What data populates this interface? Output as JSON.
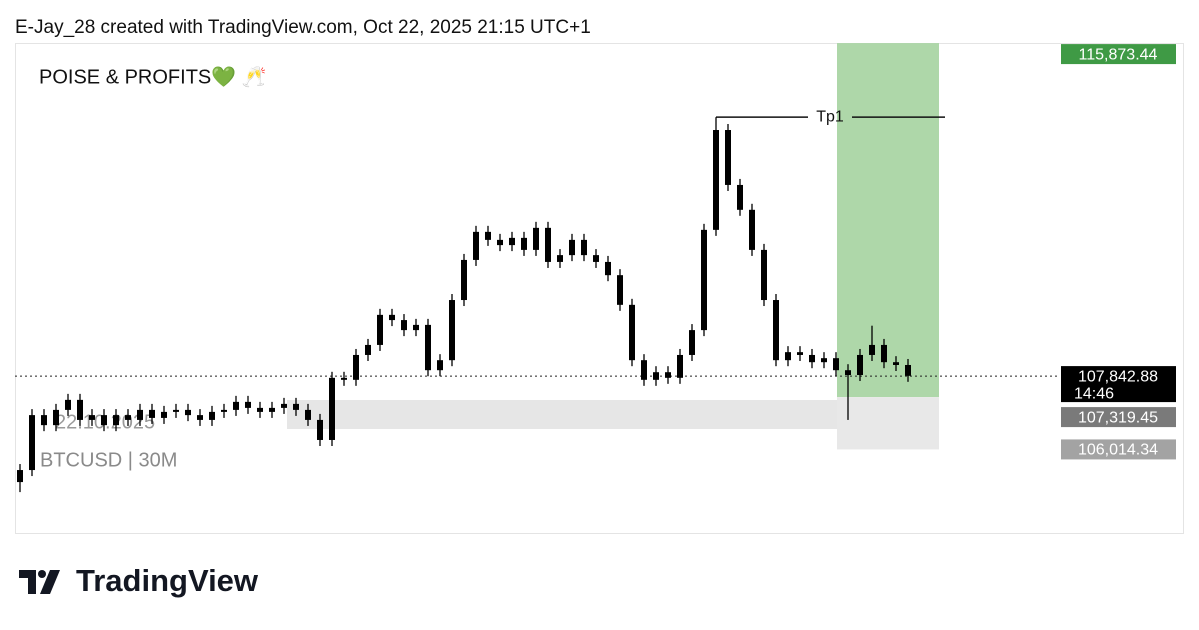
{
  "header": "E-Jay_28 created with TradingView.com, Oct 22, 2025 21:15 UTC+1",
  "chart_data": {
    "type": "candlestick",
    "title": "POISE & PROFITS💚 🥂",
    "watermark_date": "22.10.2025",
    "symbol": "BTCUSD | 30M",
    "ylim": [
      103930,
      116150
    ],
    "color": "#000000",
    "open": [
      105200,
      105500,
      106870,
      106620,
      107000,
      107250,
      106750,
      106870,
      106620,
      106870,
      106750,
      107000,
      106800,
      106950,
      107000,
      106870,
      106750,
      106950,
      107000,
      107200,
      107050,
      106950,
      107050,
      107150,
      107000,
      106750,
      106250,
      107800,
      107750,
      108370,
      108620,
      109370,
      109240,
      108990,
      109120,
      107990,
      108240,
      109740,
      110740,
      111440,
      111240,
      111110,
      111290,
      110990,
      111540,
      110690,
      110860,
      111240,
      110860,
      110690,
      110360,
      109620,
      108240,
      107750,
      107940,
      107800,
      108370,
      108990,
      111490,
      113980,
      112610,
      111990,
      110990,
      109740,
      108240,
      108440,
      108370,
      108190,
      108290,
      107990,
      107870,
      108370,
      108620,
      108190,
      108120
    ],
    "high": [
      105650,
      107020,
      107020,
      107150,
      107400,
      107400,
      107020,
      107020,
      107020,
      107020,
      107150,
      107150,
      107100,
      107150,
      107150,
      107020,
      107100,
      107150,
      107350,
      107350,
      107200,
      107200,
      107300,
      107300,
      107150,
      106900,
      107950,
      107950,
      108520,
      108770,
      109520,
      109520,
      109390,
      109270,
      109270,
      108390,
      109890,
      110890,
      111590,
      111590,
      111390,
      111440,
      111440,
      111690,
      111690,
      111010,
      111390,
      111390,
      111010,
      110840,
      110510,
      109770,
      108390,
      108090,
      108090,
      108520,
      109140,
      111640,
      114300,
      114130,
      112760,
      112140,
      111140,
      109890,
      108590,
      108590,
      108520,
      108440,
      108440,
      108140,
      108520,
      109100,
      108770,
      108340,
      108270
    ],
    "low": [
      104950,
      105350,
      106470,
      106470,
      106850,
      106600,
      106600,
      106470,
      106470,
      106600,
      106600,
      106650,
      106650,
      106800,
      106720,
      106600,
      106600,
      106800,
      106850,
      106900,
      106800,
      106800,
      106900,
      106850,
      106600,
      106100,
      106100,
      107600,
      107600,
      108220,
      108470,
      109090,
      108840,
      108840,
      107840,
      107840,
      108090,
      109590,
      110590,
      111090,
      110960,
      110960,
      110840,
      110840,
      110540,
      110540,
      110710,
      110710,
      110540,
      110210,
      109470,
      108090,
      107600,
      107600,
      107650,
      107650,
      108220,
      108840,
      111340,
      112460,
      111840,
      110840,
      109590,
      108090,
      108090,
      108220,
      108040,
      108040,
      107840,
      106750,
      107720,
      108220,
      108040,
      107970,
      107700
    ],
    "close": [
      105500,
      106870,
      106620,
      107000,
      107250,
      106750,
      106870,
      106620,
      106870,
      106750,
      107000,
      106800,
      106950,
      107000,
      106870,
      106750,
      106950,
      107000,
      107200,
      107050,
      106950,
      107050,
      107150,
      107000,
      106750,
      106250,
      107800,
      107750,
      108370,
      108620,
      109370,
      109240,
      108990,
      109120,
      107990,
      108240,
      109740,
      110740,
      111440,
      111240,
      111110,
      111290,
      110990,
      111540,
      110690,
      110860,
      111240,
      110860,
      110690,
      110360,
      109620,
      108240,
      107750,
      107940,
      107800,
      108370,
      108990,
      111490,
      113980,
      112610,
      111990,
      110990,
      109740,
      108240,
      108440,
      108370,
      108190,
      108290,
      107990,
      107870,
      108370,
      108620,
      108190,
      108120,
      107850
    ],
    "price_labels": [
      {
        "value": 115873.44,
        "label": "115,873.44",
        "color": "#3f9a45"
      },
      {
        "value": 107842.88,
        "label": "107,842.88",
        "color": "#000000"
      },
      {
        "value": 107319.45,
        "label": "107,319.45",
        "color": "#7a7a7a"
      },
      {
        "value": 106014.34,
        "label": "106,014.34",
        "color": "#a3a3a3"
      }
    ],
    "countdown": "14:46",
    "tp_line": {
      "label": "Tp1",
      "value": 114300
    }
  },
  "footer_logo": "TradingView"
}
